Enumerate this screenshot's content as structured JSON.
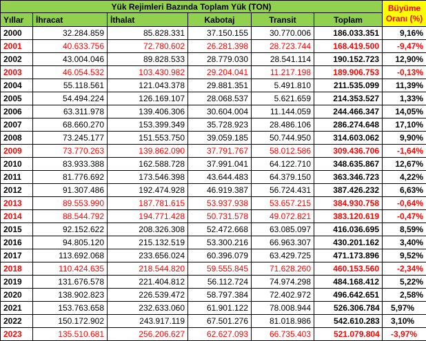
{
  "header": {
    "title": "Yük Rejimleri Bazında Toplam Yük (TON)",
    "growth_label": "Büyüme Oranı (%)",
    "col_year": "Yıllar",
    "col_export": "İhracat",
    "col_import": "İthalat",
    "col_cabotage": "Kabotaj",
    "col_transit": "Transit",
    "col_total": "Toplam"
  },
  "colors": {
    "header_bg": "#92d050",
    "growth_header_bg": "#ffff00",
    "negative": "#ff0000"
  },
  "rows": [
    {
      "year": "2000",
      "export": "32.284.859",
      "import": "85.828.331",
      "cabotage": "37.150.155",
      "transit": "30.770.006",
      "total": "186.033.351",
      "growth": "9,16%",
      "neg": false
    },
    {
      "year": "2001",
      "export": "40.633.756",
      "import": "72.780.602",
      "cabotage": "26.281.398",
      "transit": "28.723.744",
      "total": "168.419.500",
      "growth": "-9,47%",
      "neg": true
    },
    {
      "year": "2002",
      "export": "43.004.046",
      "import": "89.828.533",
      "cabotage": "28.779.030",
      "transit": "28.541.114",
      "total": "190.152.723",
      "growth": "12,90%",
      "neg": false
    },
    {
      "year": "2003",
      "export": "46.054.532",
      "import": "103.430.982",
      "cabotage": "29.204.041",
      "transit": "11.217.198",
      "total": "189.906.753",
      "growth": "-0,13%",
      "neg": true
    },
    {
      "year": "2004",
      "export": "55.118.561",
      "import": "121.043.378",
      "cabotage": "29.881.351",
      "transit": "5.491.810",
      "total": "211.535.099",
      "growth": "11,39%",
      "neg": false
    },
    {
      "year": "2005",
      "export": "54.494.224",
      "import": "126.169.107",
      "cabotage": "28.068.537",
      "transit": "5.621.659",
      "total": "214.353.527",
      "growth": "1,33%",
      "neg": false
    },
    {
      "year": "2006",
      "export": "63.311.978",
      "import": "139.406.306",
      "cabotage": "30.604.004",
      "transit": "11.144.059",
      "total": "244.466.347",
      "growth": "14,05%",
      "neg": false
    },
    {
      "year": "2007",
      "export": "68.660.270",
      "import": "153.399.349",
      "cabotage": "35.728.923",
      "transit": "28.486.106",
      "total": "286.274.648",
      "growth": "17,10%",
      "neg": false
    },
    {
      "year": "2008",
      "export": "73.245.177",
      "import": "151.553.750",
      "cabotage": "39.059.185",
      "transit": "50.744.950",
      "total": "314.603.062",
      "growth": "9,90%",
      "neg": false
    },
    {
      "year": "2009",
      "export": "73.770.263",
      "import": "139.862.090",
      "cabotage": "37.791.767",
      "transit": "58.012.586",
      "total": "309.436.706",
      "growth": "-1,64%",
      "neg": true
    },
    {
      "year": "2010",
      "export": "83.933.388",
      "import": "162.588.728",
      "cabotage": "37.991.041",
      "transit": "64.122.710",
      "total": "348.635.867",
      "growth": "12,67%",
      "neg": false
    },
    {
      "year": "2011",
      "export": "81.776.692",
      "import": "173.546.398",
      "cabotage": "43.644.483",
      "transit": "64.379.150",
      "total": "363.346.723",
      "growth": "4,22%",
      "neg": false
    },
    {
      "year": "2012",
      "export": "91.307.486",
      "import": "192.474.928",
      "cabotage": "46.919.387",
      "transit": "56.724.431",
      "total": "387.426.232",
      "growth": "6,63%",
      "neg": false
    },
    {
      "year": "2013",
      "export": "89.553.990",
      "import": "187.781.615",
      "cabotage": "53.937.938",
      "transit": "53.657.215",
      "total": "384.930.758",
      "growth": "-0,64%",
      "neg": true
    },
    {
      "year": "2014",
      "export": "88.544.792",
      "import": "194.771.428",
      "cabotage": "50.731.578",
      "transit": "49.072.821",
      "total": "383.120.619",
      "growth": "-0,47%",
      "neg": true
    },
    {
      "year": "2015",
      "export": "92.152.622",
      "import": "208.326.308",
      "cabotage": "52.472.668",
      "transit": "63.085.097",
      "total": "416.036.695",
      "growth": "8,59%",
      "neg": false
    },
    {
      "year": "2016",
      "export": "94.805.120",
      "import": "215.132.519",
      "cabotage": "53.300.216",
      "transit": "66.963.307",
      "total": "430.201.162",
      "growth": "3,40%",
      "neg": false
    },
    {
      "year": "2017",
      "export": "113.692.068",
      "import": "233.656.024",
      "cabotage": "60.396.079",
      "transit": "63.429.725",
      "total": "471.173.896",
      "growth": "9,52%",
      "neg": false
    },
    {
      "year": "2018",
      "export": "110.424.635",
      "import": "218.544.820",
      "cabotage": "59.555.845",
      "transit": "71.628.260",
      "total": "460.153.560",
      "growth": "-2,34%",
      "neg": true
    },
    {
      "year": "2019",
      "export": "131.676.578",
      "import": "221.404.812",
      "cabotage": "56.112.724",
      "transit": "74.974.298",
      "total": "484.168.412",
      "growth": "5,22%",
      "neg": false
    },
    {
      "year": "2020",
      "export": "138.902.823",
      "import": "226.539.472",
      "cabotage": "58.797.384",
      "transit": "72.402.972",
      "total": "496.642.651",
      "growth": "2,58%",
      "neg": false
    },
    {
      "year": "2021",
      "export": "153.763.658",
      "import": "232.633.060",
      "cabotage": "61.901.122",
      "transit": "78.008.944",
      "total": "526.306.784",
      "growth": "5,97%",
      "neg": false
    },
    {
      "year": "2022",
      "export": "150.172.902",
      "import": "243.917.119",
      "cabotage": "67.501.276",
      "transit": "81.018.986",
      "total": "542.610.283",
      "growth": "3,10%",
      "neg": false
    },
    {
      "year": "2023",
      "export": "135.510.681",
      "import": "256.206.627",
      "cabotage": "62.627.093",
      "transit": "66.735.403",
      "total": "521.079.804",
      "growth": "-3,97%",
      "neg": true
    }
  ]
}
